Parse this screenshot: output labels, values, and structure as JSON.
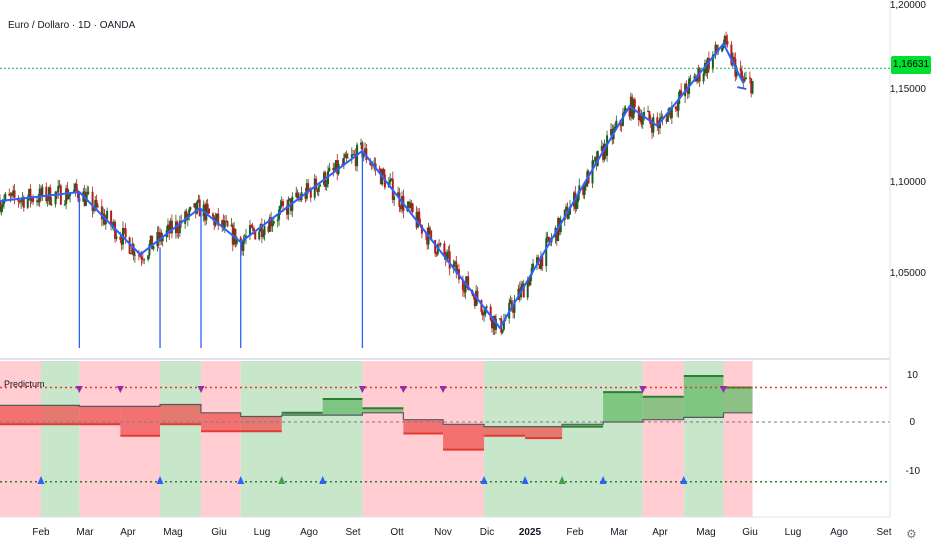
{
  "header": {
    "symbol_title": "Euro / Dollaro · 1D · OANDA"
  },
  "price_axis": {
    "labels": [
      "1,20000",
      "1,15000",
      "1,10000",
      "1,05000"
    ],
    "current_price": "1,16631"
  },
  "indicator": {
    "title": "Predictum",
    "axis_labels": [
      "10",
      "0",
      "-10"
    ]
  },
  "time_axis": {
    "labels": [
      {
        "text": "Feb",
        "bold": false
      },
      {
        "text": "Mar",
        "bold": false
      },
      {
        "text": "Apr",
        "bold": false
      },
      {
        "text": "Mag",
        "bold": false
      },
      {
        "text": "Giu",
        "bold": false
      },
      {
        "text": "Lug",
        "bold": false
      },
      {
        "text": "Ago",
        "bold": false
      },
      {
        "text": "Set",
        "bold": false
      },
      {
        "text": "Ott",
        "bold": false
      },
      {
        "text": "Nov",
        "bold": false
      },
      {
        "text": "Dic",
        "bold": false
      },
      {
        "text": "2025",
        "bold": true
      },
      {
        "text": "Feb",
        "bold": false
      },
      {
        "text": "Mar",
        "bold": false
      },
      {
        "text": "Apr",
        "bold": false
      },
      {
        "text": "Mag",
        "bold": false
      },
      {
        "text": "Giu",
        "bold": false
      },
      {
        "text": "Lug",
        "bold": false
      },
      {
        "text": "Ago",
        "bold": false
      },
      {
        "text": "Set",
        "bold": false
      }
    ]
  },
  "colors": {
    "up": "#089981",
    "down": "#f23645",
    "trend": "#2962ff",
    "bull_zone": "#c8e6c9",
    "bear_zone": "#ffcdd2",
    "price_tag": "#00e030"
  },
  "chart_data": {
    "type": "candlestick",
    "price_range": [
      1.015,
      1.205
    ],
    "indicator_range": [
      -14,
      12
    ],
    "current_price": 1.16631,
    "zigzag": [
      [
        "2024-01-01",
        1.092
      ],
      [
        "2024-03-01",
        1.097
      ],
      [
        "2024-04-16",
        1.062
      ],
      [
        "2024-05-31",
        1.088
      ],
      [
        "2024-07-01",
        1.069
      ],
      [
        "2024-10-01",
        1.12
      ],
      [
        "2025-01-13",
        1.021
      ],
      [
        "2025-04-21",
        1.145
      ],
      [
        "2025-05-12",
        1.134
      ],
      [
        "2025-07-01",
        1.18
      ],
      [
        "2025-07-16",
        1.158
      ]
    ],
    "zones": [
      {
        "start": "2024-01-01",
        "end": "2024-02-01",
        "state": "bear"
      },
      {
        "start": "2024-02-01",
        "end": "2024-03-01",
        "state": "bull"
      },
      {
        "start": "2024-03-01",
        "end": "2024-05-01",
        "state": "bear"
      },
      {
        "start": "2024-05-01",
        "end": "2024-06-01",
        "state": "bull"
      },
      {
        "start": "2024-06-01",
        "end": "2024-07-01",
        "state": "bear"
      },
      {
        "start": "2024-07-01",
        "end": "2024-10-01",
        "state": "bull"
      },
      {
        "start": "2024-10-01",
        "end": "2025-01-01",
        "state": "bear"
      },
      {
        "start": "2025-01-01",
        "end": "2025-05-01",
        "state": "bull"
      },
      {
        "start": "2025-05-01",
        "end": "2025-06-01",
        "state": "bear"
      },
      {
        "start": "2025-06-01",
        "end": "2025-07-01",
        "state": "bull"
      },
      {
        "start": "2025-07-01",
        "end": "2025-07-23",
        "state": "bear"
      }
    ],
    "bands": [
      {
        "start": "2024-01-01",
        "end": "2024-03-01",
        "value": -0.5,
        "state": "bear"
      },
      {
        "start": "2024-03-01",
        "end": "2024-04-01",
        "value": -0.5,
        "state": "bear"
      },
      {
        "start": "2024-04-01",
        "end": "2024-05-01",
        "value": -3,
        "state": "bear"
      },
      {
        "start": "2024-05-01",
        "end": "2024-06-01",
        "value": -0.5,
        "state": "bear"
      },
      {
        "start": "2024-06-01",
        "end": "2024-07-01",
        "value": -2,
        "state": "bear"
      },
      {
        "start": "2024-07-01",
        "end": "2024-08-01",
        "value": -2,
        "state": "bear"
      },
      {
        "start": "2024-08-01",
        "end": "2024-09-01",
        "value": 2,
        "state": "bull"
      },
      {
        "start": "2024-09-01",
        "end": "2024-10-01",
        "value": 5,
        "state": "bull"
      },
      {
        "start": "2024-10-01",
        "end": "2024-11-01",
        "value": 3,
        "state": "bull"
      },
      {
        "start": "2024-11-01",
        "end": "2024-12-01",
        "value": -2.5,
        "state": "bear"
      },
      {
        "start": "2024-12-01",
        "end": "2025-01-01",
        "value": -6,
        "state": "bear"
      },
      {
        "start": "2025-01-01",
        "end": "2025-02-01",
        "value": -3,
        "state": "bear"
      },
      {
        "start": "2025-02-01",
        "end": "2025-03-01",
        "value": -3.5,
        "state": "bear"
      },
      {
        "start": "2025-03-01",
        "end": "2025-04-01",
        "value": -1,
        "state": "bull"
      },
      {
        "start": "2025-04-01",
        "end": "2025-05-01",
        "value": 6.5,
        "state": "bull"
      },
      {
        "start": "2025-05-01",
        "end": "2025-06-01",
        "value": 5.5,
        "state": "bull"
      },
      {
        "start": "2025-06-01",
        "end": "2025-07-01",
        "value": 10,
        "state": "bull"
      },
      {
        "start": "2025-07-01",
        "end": "2025-07-23",
        "value": 7.5,
        "state": "bull"
      }
    ],
    "baseline": [
      [
        "2024-01-01",
        3.6
      ],
      [
        "2024-03-01",
        3.6
      ],
      [
        "2024-03-01",
        3.4
      ],
      [
        "2024-05-01",
        3.4
      ],
      [
        "2024-05-01",
        3.8
      ],
      [
        "2024-06-01",
        3.8
      ],
      [
        "2024-06-01",
        2.0
      ],
      [
        "2024-07-01",
        2.0
      ],
      [
        "2024-07-01",
        1.2
      ],
      [
        "2024-08-01",
        1.2
      ],
      [
        "2024-08-01",
        1.5
      ],
      [
        "2024-10-01",
        1.5
      ],
      [
        "2024-10-01",
        2.0
      ],
      [
        "2024-11-01",
        2.0
      ],
      [
        "2024-11-01",
        0.5
      ],
      [
        "2024-12-01",
        0.5
      ],
      [
        "2024-12-01",
        -0.5
      ],
      [
        "2025-01-01",
        -0.5
      ],
      [
        "2025-01-01",
        -1.0
      ],
      [
        "2025-03-01",
        -1.0
      ],
      [
        "2025-03-01",
        -0.5
      ],
      [
        "2025-04-01",
        -0.5
      ],
      [
        "2025-04-01",
        0.0
      ],
      [
        "2025-05-01",
        0.0
      ],
      [
        "2025-05-01",
        0.5
      ],
      [
        "2025-06-01",
        0.5
      ],
      [
        "2025-06-01",
        1.0
      ],
      [
        "2025-07-01",
        1.0
      ],
      [
        "2025-07-01",
        2.0
      ],
      [
        "2025-07-23",
        2.0
      ]
    ],
    "sell_markers": [
      "2024-03-01",
      "2024-04-01",
      "2024-06-01",
      "2024-10-01",
      "2024-11-01",
      "2024-12-01",
      "2025-05-01",
      "2025-07-01"
    ],
    "buy_markers": [
      {
        "date": "2024-02-01",
        "color": "blue"
      },
      {
        "date": "2024-05-01",
        "color": "blue"
      },
      {
        "date": "2024-07-01",
        "color": "blue"
      },
      {
        "date": "2024-08-01",
        "color": "green"
      },
      {
        "date": "2024-09-01",
        "color": "blue"
      },
      {
        "date": "2025-01-01",
        "color": "blue"
      },
      {
        "date": "2025-02-01",
        "color": "blue"
      },
      {
        "date": "2025-03-01",
        "color": "green"
      },
      {
        "date": "2025-04-01",
        "color": "blue"
      },
      {
        "date": "2025-06-01",
        "color": "blue"
      }
    ],
    "signal_lines": [
      {
        "date": "2024-03-01",
        "price": 1.096
      },
      {
        "date": "2024-05-01",
        "price": 1.066
      },
      {
        "date": "2024-06-01",
        "price": 1.088
      },
      {
        "date": "2024-07-01",
        "price": 1.07
      },
      {
        "date": "2024-10-01",
        "price": 1.118
      }
    ],
    "upper_threshold": 7.5,
    "lower_threshold": -13
  }
}
